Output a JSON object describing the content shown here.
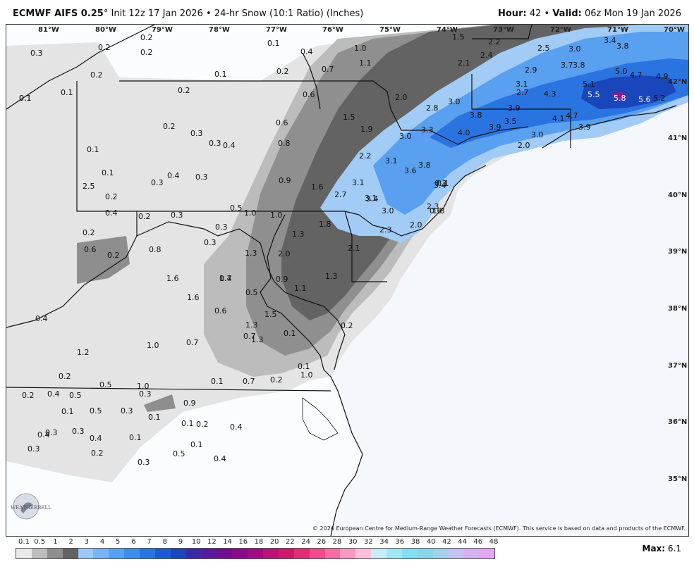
{
  "header": {
    "model": "ECMWF AIFS 0.25",
    "degree": "°",
    "init": "Init 12z 17 Jan 2026",
    "bullet": "•",
    "product": "24-hr Snow (10:1 Ratio) (Inches)",
    "hour_label": "Hour:",
    "hour_value": "42",
    "valid_label": "Valid:",
    "valid_value": "06z Mon 19 Jan 2026"
  },
  "map": {
    "longitude_labels": [
      "81°W",
      "80°W",
      "79°W",
      "78°W",
      "77°W",
      "76°W",
      "75°W",
      "74°W",
      "73°W",
      "72°W",
      "71°W",
      "70°W"
    ],
    "latitude_labels": [
      "42°N",
      "41°N",
      "40°N",
      "39°N",
      "38°N",
      "37°N",
      "36°N",
      "35°N"
    ],
    "snow_values": [
      "0.3",
      "0.2",
      "0.2",
      "0.2",
      "0.2",
      "0.1",
      "0.4",
      "1.0",
      "1.5",
      "2.2",
      "2.5",
      "3.0",
      "3.4",
      "3.8",
      "0.1",
      "0.2",
      "0.1",
      "0.1",
      "0.2",
      "0.7",
      "1.1",
      "2.4",
      "2.1",
      "3.8",
      "3.7",
      "5.0",
      "4.7",
      "4.9",
      "0.1",
      "0.6",
      "2.0",
      "2.7",
      "2.9",
      "3.1",
      "4.3",
      "5.1",
      "5.5",
      "5.8",
      "5.6",
      "5.2",
      "0.2",
      "0.3",
      "0.3",
      "0.4",
      "0.6",
      "1.5",
      "1.9",
      "2.8",
      "3.0",
      "3.8",
      "3.9",
      "4.1",
      "4.7",
      "3.9",
      "0.1",
      "0.3",
      "0.8",
      "3.0",
      "3.3",
      "4.0",
      "3.9",
      "3.5",
      "3.0",
      "2.0",
      "0.1",
      "0.2",
      "0.4",
      "0.3",
      "0.9",
      "1.6",
      "2.2",
      "3.1",
      "3.6",
      "3.8",
      "3.4",
      "0.1",
      "2.5",
      "2.7",
      "3.1",
      "3.4",
      "0.3",
      "0.4",
      "0.2",
      "0.3",
      "0.5",
      "1.0",
      "1.0",
      "3.1",
      "3.0",
      "2.3",
      "1.8",
      "0.3",
      "0.2",
      "0.3",
      "1.3",
      "1.8",
      "2.3",
      "2.0",
      "0.6",
      "0.6",
      "0.2",
      "0.8",
      "1.3",
      "2.0",
      "2.1",
      "1.7",
      "0.4",
      "0.5",
      "1.1",
      "1.3",
      "1.6",
      "1.6",
      "0.6",
      "0.9",
      "1.5",
      "1.3",
      "0.2",
      "0.4",
      "0.7",
      "1.3",
      "0.1",
      "1.0",
      "0.7",
      "0.1",
      "1.0",
      "1.2",
      "0.2",
      "0.5",
      "1.0",
      "0.9",
      "0.1",
      "0.7",
      "0.2",
      "0.2",
      "0.4",
      "0.5",
      "0.5",
      "0.3",
      "0.1",
      "0.1",
      "0.2",
      "0.3",
      "0.4",
      "0.4",
      "0.3",
      "0.1",
      "0.2",
      "0.3",
      "0.5",
      "0.4",
      "0.4",
      "0.1",
      "0.1",
      "0.3",
      "0.3",
      "0.1",
      "0.2",
      "0.1"
    ]
  },
  "copyright": "© 2026 European Centre for Medium-Range Weather Forecasts (ECMWF). This service is based on data and products of the ECMWF.",
  "logo": {
    "text": "WEATHERBELL"
  },
  "legend": {
    "ticks": [
      "0.1",
      "0.5",
      "1",
      "2",
      "3",
      "4",
      "5",
      "6",
      "7",
      "8",
      "9",
      "10",
      "12",
      "14",
      "16",
      "18",
      "20",
      "22",
      "24",
      "26",
      "28",
      "30",
      "32",
      "34",
      "36",
      "38",
      "40",
      "42",
      "44",
      "46",
      "48"
    ],
    "colors": [
      "#e9e9e9",
      "#bdbdbd",
      "#8f8f8f",
      "#626262",
      "#9ec8f5",
      "#7ab4f2",
      "#5aa0f0",
      "#3f8cec",
      "#2a74e2",
      "#1d5bd0",
      "#1946ba",
      "#3a2aa8",
      "#561a9c",
      "#6e1090",
      "#880c88",
      "#a10c7e",
      "#b81474",
      "#cc1a6a",
      "#e02e76",
      "#ee4c8c",
      "#f46ea4",
      "#f79abe",
      "#f9c2d8",
      "#c9ecf6",
      "#a4e6f4",
      "#84e0f0",
      "#8ad6e6",
      "#a6d0ea",
      "#c4c2ee",
      "#d6b2f0",
      "#e2a8ee"
    ]
  },
  "footer": {
    "max_label": "Max:",
    "max_value": "6.1"
  },
  "colors": {
    "frame": "#333333",
    "ocean": "#f6f9fc",
    "land_border": "#111111"
  }
}
